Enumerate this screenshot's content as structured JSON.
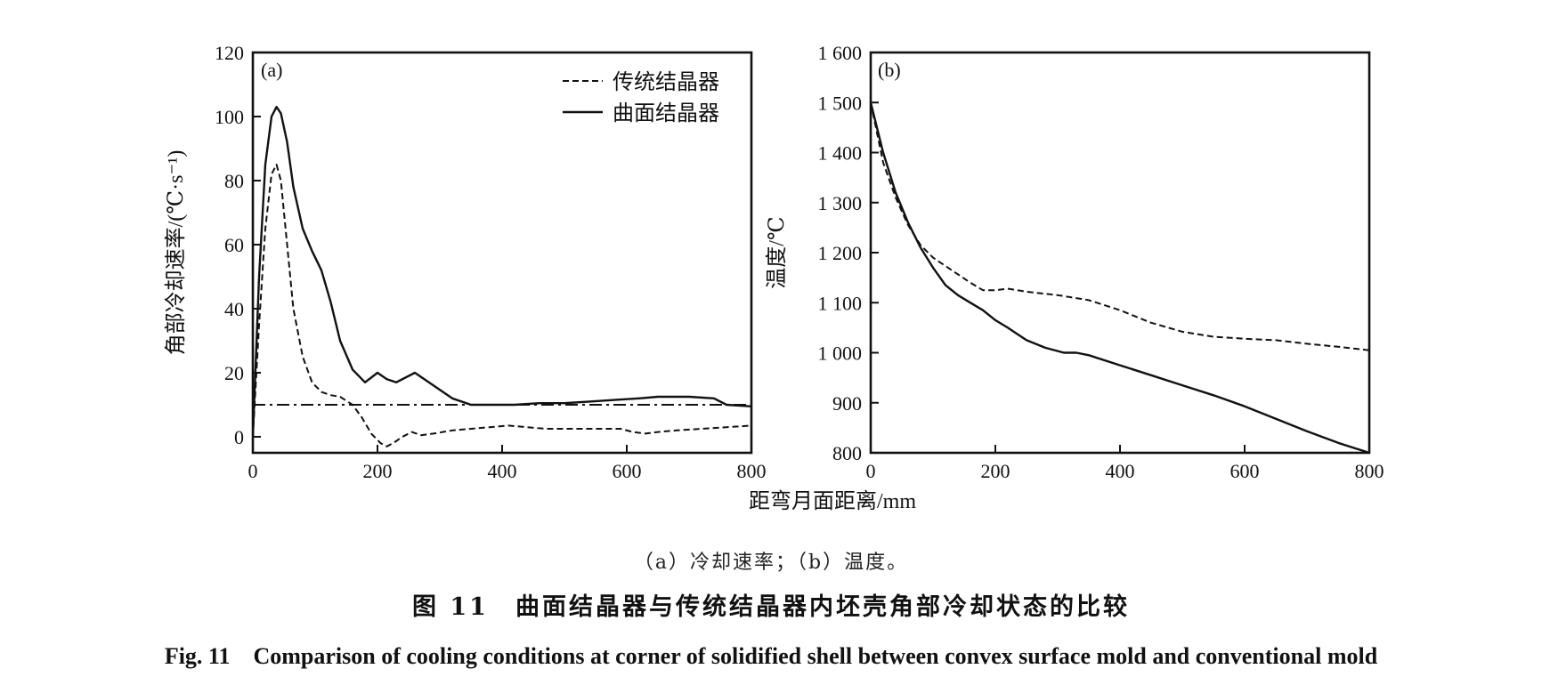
{
  "figure": {
    "shared_xlabel": "距弯月面距离/mm",
    "sub_caption": "（a）冷却速率；（b）温度。",
    "caption_cn": "图 11　曲面结晶器与传统结晶器内坯壳角部冷却状态的比较",
    "caption_en": "Fig. 11　Comparison of cooling conditions at corner of solidified shell between convex surface mold and conventional mold"
  },
  "chart_data": [
    {
      "panel": "(a)",
      "type": "line",
      "ylabel": "角部冷却速率/(℃·s⁻¹)",
      "xlabel": "距弯月面距离/mm",
      "xlim": [
        0,
        800
      ],
      "ylim": [
        -5,
        120
      ],
      "xticks": [
        0,
        200,
        400,
        600,
        800
      ],
      "xtick_labels": [
        "0",
        "200",
        "400",
        "600",
        "800"
      ],
      "yticks": [
        0,
        20,
        40,
        60,
        80,
        100,
        120
      ],
      "ytick_labels": [
        "0",
        "20",
        "40",
        "60",
        "80",
        "100",
        "120"
      ],
      "legend": [
        "传统结晶器",
        "曲面结晶器"
      ],
      "legend_position": "top-right",
      "series": [
        {
          "name": "传统结晶器",
          "style": "dashed",
          "x": [
            0,
            10,
            20,
            30,
            38,
            45,
            55,
            65,
            80,
            95,
            110,
            125,
            140,
            160,
            175,
            190,
            205,
            215,
            225,
            240,
            255,
            270,
            290,
            320,
            350,
            380,
            410,
            440,
            470,
            500,
            530,
            560,
            590,
            610,
            630,
            650,
            680,
            720,
            760,
            800
          ],
          "y": [
            0,
            35,
            65,
            82,
            85,
            80,
            60,
            40,
            25,
            17,
            14,
            13,
            12.5,
            10,
            6,
            1,
            -2,
            -3,
            -2,
            0,
            1.5,
            0.5,
            1,
            2,
            2.5,
            3,
            3.5,
            3,
            2.5,
            2.5,
            2.5,
            2.5,
            2.5,
            1.5,
            1,
            1.5,
            2,
            2.5,
            3,
            3.5
          ]
        },
        {
          "name": "曲面结晶器",
          "style": "solid",
          "x": [
            0,
            10,
            20,
            30,
            38,
            45,
            55,
            65,
            80,
            95,
            110,
            125,
            140,
            160,
            180,
            200,
            215,
            230,
            260,
            290,
            320,
            350,
            380,
            420,
            460,
            500,
            540,
            580,
            620,
            650,
            680,
            700,
            740,
            760,
            800
          ],
          "y": [
            0,
            50,
            85,
            100,
            103,
            101,
            92,
            78,
            65,
            58,
            52,
            42,
            30,
            21,
            17,
            20,
            18,
            17,
            20,
            16,
            12,
            10,
            10,
            10,
            10.5,
            10.5,
            11,
            11.5,
            12,
            12.5,
            12.5,
            12.5,
            12,
            10,
            9.5
          ]
        },
        {
          "name": "reference",
          "style": "dashdot",
          "x": [
            0,
            800
          ],
          "y": [
            10,
            10
          ]
        }
      ]
    },
    {
      "panel": "(b)",
      "type": "line",
      "ylabel": "温度/℃",
      "xlabel": "距弯月面距离/mm",
      "xlim": [
        0,
        800
      ],
      "ylim": [
        800,
        1600
      ],
      "xticks": [
        0,
        200,
        400,
        600,
        800
      ],
      "xtick_labels": [
        "0",
        "200",
        "400",
        "600",
        "800"
      ],
      "yticks": [
        800,
        900,
        1000,
        1100,
        1200,
        1300,
        1400,
        1500,
        1600
      ],
      "ytick_labels": [
        "800",
        "900",
        "1 000",
        "1 100",
        "1 200",
        "1 300",
        "1 400",
        "1 500",
        "1 600"
      ],
      "series": [
        {
          "name": "传统结晶器",
          "style": "dashed",
          "x": [
            0,
            10,
            20,
            40,
            60,
            80,
            100,
            130,
            160,
            180,
            200,
            220,
            250,
            300,
            350,
            400,
            450,
            500,
            550,
            600,
            650,
            700,
            750,
            800
          ],
          "y": [
            1500,
            1440,
            1380,
            1310,
            1255,
            1215,
            1190,
            1165,
            1140,
            1125,
            1125,
            1128,
            1122,
            1115,
            1105,
            1085,
            1060,
            1042,
            1032,
            1028,
            1025,
            1018,
            1012,
            1005
          ]
        },
        {
          "name": "曲面结晶器",
          "style": "solid",
          "x": [
            0,
            10,
            20,
            40,
            60,
            80,
            100,
            120,
            140,
            160,
            180,
            200,
            220,
            250,
            280,
            310,
            330,
            350,
            400,
            450,
            500,
            550,
            600,
            650,
            700,
            750,
            800
          ],
          "y": [
            1500,
            1450,
            1400,
            1320,
            1260,
            1210,
            1170,
            1135,
            1115,
            1100,
            1085,
            1065,
            1050,
            1025,
            1010,
            1000,
            1000,
            995,
            975,
            955,
            935,
            915,
            893,
            868,
            843,
            820,
            800
          ]
        }
      ]
    }
  ]
}
